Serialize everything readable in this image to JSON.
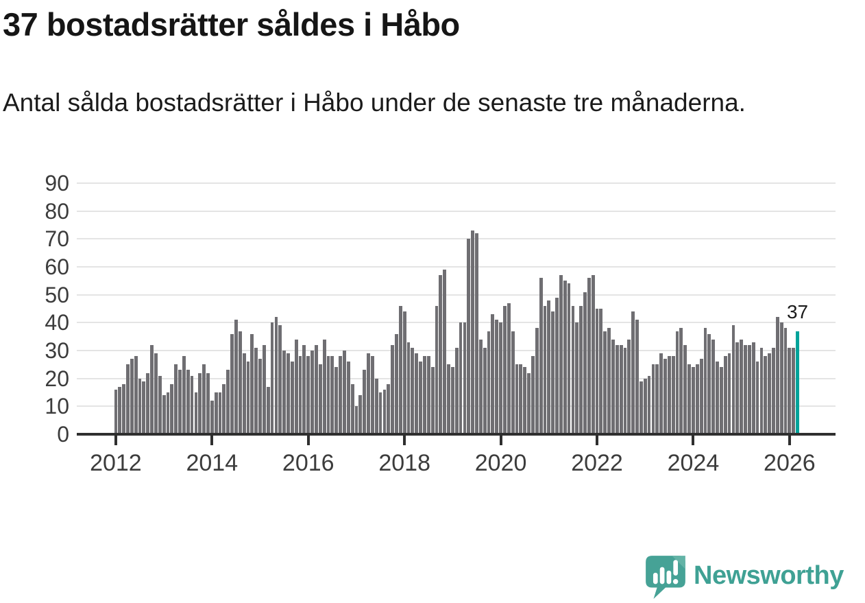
{
  "title": "37 bostadsrätter såldes i Håbo",
  "subtitle": "Antal sålda bostadsrätter i Håbo under de senaste tre månaderna.",
  "chart_data": {
    "type": "bar",
    "title": "37 bostadsrätter såldes i Håbo",
    "xlabel": "",
    "ylabel": "",
    "ylim": [
      0,
      90
    ],
    "grid": "horizontal",
    "legend": "none",
    "start_month": "2012-01",
    "frequency": "monthly (rolling 3-month sum)",
    "bar_color": "#6f6e72",
    "highlight_color": "#00a39a",
    "highlight_index": 170,
    "value_label": {
      "text": "37",
      "index": 170
    },
    "yticks": [
      0,
      10,
      20,
      30,
      40,
      50,
      60,
      70,
      80,
      90
    ],
    "xticks": [
      {
        "index": 0,
        "label": "2012"
      },
      {
        "index": 24,
        "label": "2014"
      },
      {
        "index": 48,
        "label": "2016"
      },
      {
        "index": 72,
        "label": "2018"
      },
      {
        "index": 96,
        "label": "2020"
      },
      {
        "index": 120,
        "label": "2022"
      },
      {
        "index": 144,
        "label": "2024"
      },
      {
        "index": 168,
        "label": "2026"
      }
    ],
    "values": [
      16,
      17,
      18,
      25,
      27,
      28,
      20,
      19,
      22,
      32,
      29,
      21,
      14,
      15,
      18,
      25,
      23,
      28,
      23,
      21,
      15,
      22,
      25,
      22,
      12,
      15,
      15,
      18,
      23,
      36,
      41,
      37,
      29,
      26,
      36,
      31,
      27,
      32,
      17,
      40,
      42,
      39,
      30,
      29,
      26,
      34,
      28,
      32,
      28,
      30,
      32,
      25,
      34,
      28,
      28,
      24,
      28,
      30,
      26,
      18,
      10,
      14,
      23,
      29,
      28,
      20,
      15,
      16,
      18,
      32,
      36,
      46,
      44,
      33,
      31,
      29,
      26,
      28,
      28,
      24,
      46,
      57,
      59,
      25,
      24,
      31,
      40,
      40,
      70,
      73,
      72,
      34,
      31,
      37,
      43,
      41,
      40,
      46,
      47,
      37,
      25,
      25,
      24,
      22,
      28,
      38,
      56,
      46,
      48,
      44,
      49,
      57,
      55,
      54,
      46,
      40,
      46,
      51,
      56,
      57,
      45,
      45,
      37,
      38,
      34,
      32,
      32,
      31,
      34,
      44,
      41,
      19,
      20,
      21,
      25,
      25,
      29,
      27,
      28,
      28,
      37,
      38,
      32,
      25,
      24,
      25,
      27,
      38,
      36,
      34,
      26,
      24,
      28,
      29,
      39,
      33,
      34,
      32,
      32,
      33,
      26,
      31,
      28,
      29,
      31,
      42,
      40,
      38,
      31,
      31,
      37
    ]
  },
  "logo": {
    "text": "Newsworthy",
    "text_color": "#3fa194",
    "mark_color": "#46a296",
    "mark_fold_color": "#63b3a6",
    "icon": "newsworthy-logo-icon"
  }
}
